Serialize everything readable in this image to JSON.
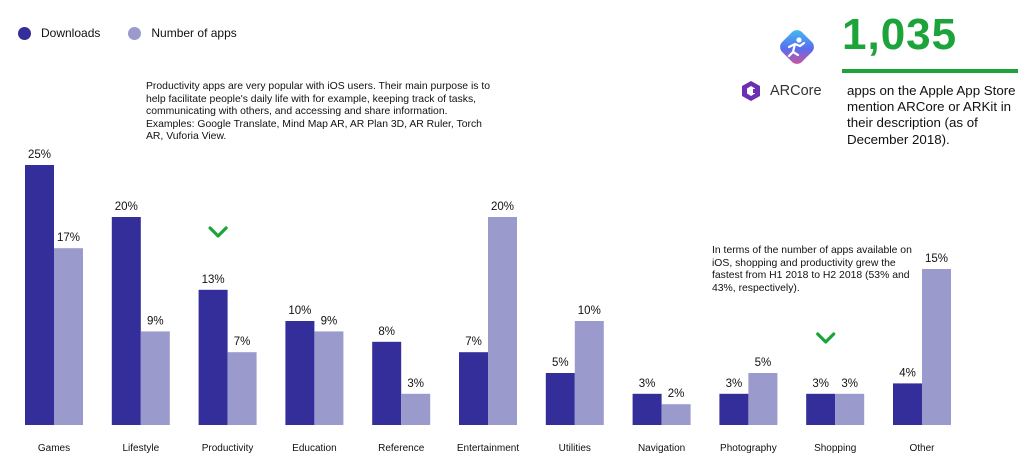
{
  "legend": {
    "downloads_label": "Downloads",
    "apps_label": "Number of apps"
  },
  "colors": {
    "downloads": "#332e99",
    "apps": "#9b9acc",
    "accent_green": "#1ca33a"
  },
  "annotations": {
    "productivity_note": "Productivity apps are very popular with iOS users. Their main purpose is to help facilitate people's daily life with for example, keeping track of tasks, communicating with others, and accessing and share information.\nExamples: Google Translate, Mind Map AR, AR Plan 3D, AR Ruler, Torch AR, Vuforia View.",
    "growth_note": "In terms of the number of apps available on iOS, shopping and productivity grew the fastest from H1 2018 to H2 2018 (53% and 43%, respectively)."
  },
  "callout": {
    "number": "1,035",
    "text": "apps on the Apple App Store mention ARCore or ARKit in their description (as of December 2018).",
    "arcore_label": "ARCore"
  },
  "chart_data": {
    "type": "bar",
    "title": "",
    "xlabel": "",
    "ylabel": "",
    "ylim": [
      0,
      25
    ],
    "grid": false,
    "legend_position": "top-left",
    "categories": [
      "Games",
      "Lifestyle",
      "Productivity",
      "Education",
      "Reference",
      "Entertainment",
      "Utilities",
      "Navigation",
      "Photography",
      "Shopping",
      "Other"
    ],
    "series": [
      {
        "name": "Downloads",
        "values": [
          25,
          20,
          13,
          10,
          8,
          7,
          5,
          3,
          3,
          3,
          4
        ],
        "labels": [
          "25%",
          "20%",
          "13%",
          "10%",
          "8%",
          "7%",
          "5%",
          "3%",
          "3%",
          "3%",
          "4%"
        ]
      },
      {
        "name": "Number of apps",
        "values": [
          17,
          9,
          7,
          9,
          3,
          20,
          10,
          2,
          5,
          3,
          15
        ],
        "labels": [
          "17%",
          "9%",
          "7%",
          "9%",
          "3%",
          "20%",
          "10%",
          "2%",
          "5%",
          "3%",
          "15%"
        ]
      }
    ],
    "highlighted_categories": [
      "Productivity",
      "Shopping"
    ]
  }
}
